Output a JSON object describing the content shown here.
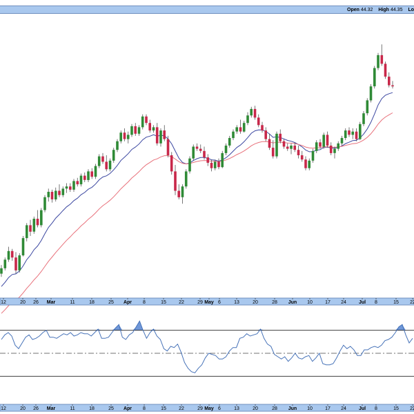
{
  "header": {
    "open_label": "Open",
    "open_value": "44.32",
    "high_label": "High",
    "high_value": "44.35",
    "low_label_fragment": "Lo"
  },
  "chart_data": [
    {
      "type": "candlestick",
      "title": "",
      "x_ticks": [
        "12",
        "20",
        "26",
        "Mar",
        "11",
        "18",
        "25",
        "Apr",
        "8",
        "15",
        "22",
        "29",
        "May",
        "6",
        "13",
        "20",
        "28",
        "Jun",
        "10",
        "17",
        "24",
        "Jul",
        "8",
        "15",
        "22"
      ],
      "major_ticks": [
        "Mar",
        "Apr",
        "May",
        "Jun",
        "Jul"
      ],
      "candles": [
        [
          31.5,
          32.3,
          31.2,
          32.0
        ],
        [
          32.0,
          33.0,
          31.8,
          32.8
        ],
        [
          32.8,
          34.0,
          32.6,
          33.6
        ],
        [
          33.6,
          33.8,
          32.7,
          33.0
        ],
        [
          33.0,
          33.5,
          31.5,
          31.8
        ],
        [
          31.8,
          33.4,
          31.6,
          33.2
        ],
        [
          33.2,
          35.0,
          33.1,
          34.8
        ],
        [
          34.8,
          36.2,
          34.5,
          36.0
        ],
        [
          36.0,
          36.5,
          35.0,
          35.4
        ],
        [
          35.4,
          36.8,
          35.2,
          36.6
        ],
        [
          36.6,
          37.4,
          35.8,
          36.0
        ],
        [
          36.0,
          37.6,
          35.8,
          37.4
        ],
        [
          37.4,
          38.8,
          37.2,
          38.6
        ],
        [
          38.6,
          39.4,
          38.2,
          39.1
        ],
        [
          39.1,
          39.3,
          38.1,
          38.4
        ],
        [
          38.4,
          39.5,
          38.2,
          39.2
        ],
        [
          39.2,
          39.8,
          38.6,
          38.8
        ],
        [
          38.8,
          39.6,
          38.6,
          39.4
        ],
        [
          39.4,
          39.9,
          39.0,
          39.6
        ],
        [
          39.6,
          39.9,
          39.1,
          39.3
        ],
        [
          39.3,
          40.3,
          39.1,
          40.1
        ],
        [
          40.1,
          40.4,
          39.6,
          39.8
        ],
        [
          39.8,
          40.8,
          39.6,
          40.6
        ],
        [
          40.6,
          40.9,
          40.0,
          40.2
        ],
        [
          40.2,
          41.2,
          40.0,
          41.0
        ],
        [
          41.0,
          41.3,
          40.3,
          40.5
        ],
        [
          40.5,
          41.7,
          40.3,
          41.5
        ],
        [
          41.5,
          42.6,
          41.3,
          42.4
        ],
        [
          42.4,
          42.7,
          41.7,
          41.9
        ],
        [
          41.9,
          42.5,
          41.0,
          41.2
        ],
        [
          41.2,
          42.2,
          41.0,
          42.0
        ],
        [
          42.0,
          43.2,
          41.8,
          43.0
        ],
        [
          43.0,
          44.0,
          42.8,
          43.8
        ],
        [
          43.8,
          44.8,
          43.6,
          44.6
        ],
        [
          44.6,
          45.0,
          43.8,
          44.0
        ],
        [
          44.0,
          44.7,
          43.6,
          44.4
        ],
        [
          44.4,
          45.4,
          44.2,
          45.2
        ],
        [
          45.2,
          45.5,
          44.3,
          44.5
        ],
        [
          44.5,
          45.3,
          44.3,
          45.1
        ],
        [
          45.1,
          46.3,
          44.9,
          46.1
        ],
        [
          46.1,
          46.3,
          45.3,
          45.5
        ],
        [
          45.5,
          45.8,
          44.6,
          44.8
        ],
        [
          44.8,
          45.3,
          44.6,
          45.1
        ],
        [
          45.1,
          45.5,
          43.4,
          43.6
        ],
        [
          43.6,
          45.0,
          43.3,
          44.8
        ],
        [
          44.8,
          45.3,
          43.8,
          44.0
        ],
        [
          44.0,
          44.3,
          42.3,
          42.5
        ],
        [
          42.5,
          42.8,
          40.7,
          41.0
        ],
        [
          41.0,
          41.6,
          38.8,
          39.2
        ],
        [
          39.2,
          39.8,
          38.4,
          38.6
        ],
        [
          38.6,
          39.8,
          38.0,
          39.6
        ],
        [
          39.6,
          41.2,
          39.4,
          41.0
        ],
        [
          41.0,
          42.4,
          40.8,
          42.2
        ],
        [
          42.2,
          43.5,
          42.0,
          43.3
        ],
        [
          43.3,
          43.6,
          42.9,
          43.1
        ],
        [
          43.1,
          43.5,
          42.7,
          42.9
        ],
        [
          42.9,
          43.3,
          42.1,
          42.3
        ],
        [
          42.3,
          42.6,
          41.5,
          41.8
        ],
        [
          41.8,
          42.1,
          41.0,
          41.3
        ],
        [
          41.3,
          42.1,
          41.1,
          41.9
        ],
        [
          41.9,
          42.2,
          41.2,
          41.4
        ],
        [
          41.4,
          42.9,
          41.3,
          42.7
        ],
        [
          42.7,
          43.6,
          42.5,
          43.4
        ],
        [
          43.4,
          44.3,
          43.2,
          44.1
        ],
        [
          44.1,
          44.9,
          43.9,
          44.7
        ],
        [
          44.7,
          45.3,
          44.5,
          45.1
        ],
        [
          45.1,
          45.8,
          44.5,
          44.7
        ],
        [
          44.7,
          45.7,
          44.6,
          45.5
        ],
        [
          45.5,
          46.5,
          45.3,
          46.2
        ],
        [
          46.2,
          47.0,
          46.0,
          46.8
        ],
        [
          46.8,
          47.1,
          45.8,
          46.0
        ],
        [
          46.0,
          46.3,
          45.1,
          45.3
        ],
        [
          45.3,
          45.6,
          44.6,
          44.8
        ],
        [
          44.8,
          45.1,
          43.8,
          44.0
        ],
        [
          44.0,
          44.5,
          43.0,
          43.2
        ],
        [
          43.2,
          43.9,
          42.2,
          42.4
        ],
        [
          42.4,
          44.7,
          42.2,
          44.5
        ],
        [
          44.5,
          44.9,
          43.6,
          43.8
        ],
        [
          43.8,
          44.0,
          43.1,
          43.3
        ],
        [
          43.3,
          43.6,
          42.9,
          43.1
        ],
        [
          43.1,
          43.6,
          42.6,
          43.4
        ],
        [
          43.4,
          43.7,
          42.8,
          43.0
        ],
        [
          43.0,
          43.4,
          42.2,
          42.5
        ],
        [
          42.5,
          42.9,
          41.9,
          42.1
        ],
        [
          42.1,
          42.4,
          41.1,
          41.3
        ],
        [
          41.3,
          42.2,
          41.1,
          42.0
        ],
        [
          42.0,
          43.1,
          41.8,
          42.9
        ],
        [
          42.9,
          43.9,
          42.7,
          43.7
        ],
        [
          43.7,
          44.0,
          43.1,
          43.3
        ],
        [
          43.3,
          44.6,
          43.1,
          44.4
        ],
        [
          44.4,
          44.7,
          43.2,
          43.4
        ],
        [
          43.4,
          43.7,
          42.5,
          42.7
        ],
        [
          42.7,
          43.3,
          42.2,
          43.1
        ],
        [
          43.1,
          43.8,
          42.9,
          43.6
        ],
        [
          43.6,
          44.3,
          43.4,
          44.1
        ],
        [
          44.1,
          45.0,
          43.9,
          44.8
        ],
        [
          44.8,
          45.1,
          44.2,
          44.4
        ],
        [
          44.4,
          45.0,
          44.0,
          44.7
        ],
        [
          44.7,
          45.0,
          43.8,
          44.0
        ],
        [
          44.0,
          45.6,
          43.9,
          45.4
        ],
        [
          45.4,
          46.6,
          45.2,
          46.4
        ],
        [
          46.4,
          47.8,
          46.2,
          47.6
        ],
        [
          47.6,
          49.1,
          47.4,
          48.9
        ],
        [
          48.9,
          50.8,
          48.7,
          50.6
        ],
        [
          50.6,
          52.0,
          50.4,
          51.8
        ],
        [
          51.8,
          52.8,
          50.8,
          51.0
        ],
        [
          51.0,
          51.2,
          49.6,
          49.8
        ],
        [
          49.8,
          50.2,
          48.8,
          49.0
        ],
        [
          49.0,
          49.4,
          48.7,
          48.9
        ]
      ],
      "overlays": [
        {
          "name": "",
          "color": "#3a46a0"
        },
        {
          "name": "",
          "color": "#e8707a"
        }
      ],
      "colors": {
        "up": "#2f8a36",
        "down": "#c8284a"
      },
      "grid": false
    },
    {
      "type": "line",
      "title": "",
      "upper_band": 70,
      "lower_band": 30,
      "mid_line": 50,
      "ylim": [
        20,
        80
      ],
      "fill_above_color": "#6f97d8",
      "line_color": "#4672b8",
      "values": [
        62,
        66,
        68,
        65,
        57,
        54,
        59,
        64,
        66,
        62,
        63,
        65,
        68,
        70,
        64,
        64,
        63,
        65,
        67,
        66,
        68,
        65,
        66,
        68,
        67,
        67,
        65,
        68,
        71,
        63,
        63,
        64,
        68,
        72,
        75,
        64,
        62,
        66,
        68,
        73,
        78,
        70,
        63,
        68,
        71,
        65,
        62,
        54,
        52,
        56,
        55,
        58,
        51,
        42,
        37,
        34,
        33,
        37,
        40,
        46,
        50,
        49,
        48,
        45,
        45,
        47,
        52,
        55,
        55,
        63,
        64,
        67,
        65,
        66,
        67,
        71,
        63,
        58,
        56,
        49,
        47,
        45,
        47,
        43,
        46,
        50,
        46,
        45,
        47,
        48,
        43,
        46,
        50,
        41,
        40,
        40,
        41,
        46,
        52,
        57,
        54,
        56,
        53,
        48,
        48,
        53,
        53,
        55,
        56,
        55,
        57,
        61,
        62,
        64,
        68,
        73,
        75,
        66,
        59,
        63
      ]
    }
  ]
}
